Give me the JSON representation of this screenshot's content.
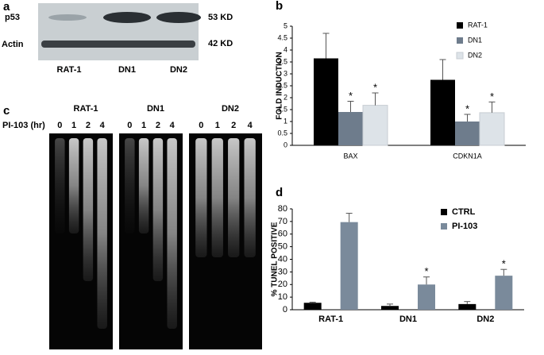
{
  "panels": {
    "a": {
      "label": "a",
      "rows": [
        "p53",
        "Actin"
      ],
      "sizes": [
        "53 KD",
        "42 KD"
      ],
      "lanes": [
        "RAT-1",
        "DN1",
        "DN2"
      ]
    },
    "c": {
      "label": "c",
      "row_label": "PI-103 (hr)",
      "gels": [
        {
          "name": "RAT-1",
          "lanes": [
            "0",
            "1",
            "2",
            "4"
          ]
        },
        {
          "name": "DN1",
          "lanes": [
            "0",
            "1",
            "2",
            "4"
          ]
        },
        {
          "name": "DN2",
          "lanes": [
            "0",
            "1",
            "2",
            "4"
          ]
        }
      ]
    }
  },
  "chart_data": [
    {
      "panel": "b",
      "type": "bar",
      "ylabel": "FOLD INDUCTION",
      "categories": [
        "BAX",
        "CDKN1A"
      ],
      "series": [
        {
          "name": "RAT-1",
          "color": "#000000",
          "values": [
            3.65,
            2.75
          ],
          "errors": [
            1.05,
            0.85
          ]
        },
        {
          "name": "DN1",
          "color": "#6e7c8c",
          "values": [
            1.4,
            1.0
          ],
          "errors": [
            0.45,
            0.3
          ]
        },
        {
          "name": "DN2",
          "color": "#dde3e8",
          "values": [
            1.68,
            1.37
          ],
          "errors": [
            0.52,
            0.45
          ]
        }
      ],
      "ylim": [
        0,
        5
      ],
      "yticks": [
        0,
        0.5,
        1,
        1.5,
        2,
        2.5,
        3,
        3.5,
        4,
        4.5,
        5
      ],
      "legend": "top-right",
      "annotations": [
        {
          "text": "*",
          "series": 1,
          "category": 0
        },
        {
          "text": "*",
          "series": 2,
          "category": 0
        },
        {
          "text": "*",
          "series": 1,
          "category": 1
        },
        {
          "text": "*",
          "series": 2,
          "category": 1
        }
      ]
    },
    {
      "panel": "d",
      "type": "bar",
      "ylabel": "% TUNEL POSITIVE",
      "categories": [
        "RAT-1",
        "DN1",
        "DN2"
      ],
      "series": [
        {
          "name": "CTRL",
          "color": "#000000",
          "values": [
            5.5,
            3,
            4.5
          ],
          "errors": [
            0.5,
            1.5,
            2
          ]
        },
        {
          "name": "PI-103",
          "color": "#7a8a9b",
          "values": [
            69.5,
            20,
            27
          ],
          "errors": [
            7,
            6,
            5
          ]
        }
      ],
      "ylim": [
        0,
        80
      ],
      "yticks": [
        0,
        10,
        20,
        30,
        40,
        50,
        60,
        70,
        80
      ],
      "legend": "top-right",
      "annotations": [
        {
          "text": "*",
          "series": 1,
          "category": 1
        },
        {
          "text": "*",
          "series": 1,
          "category": 2
        }
      ]
    }
  ]
}
